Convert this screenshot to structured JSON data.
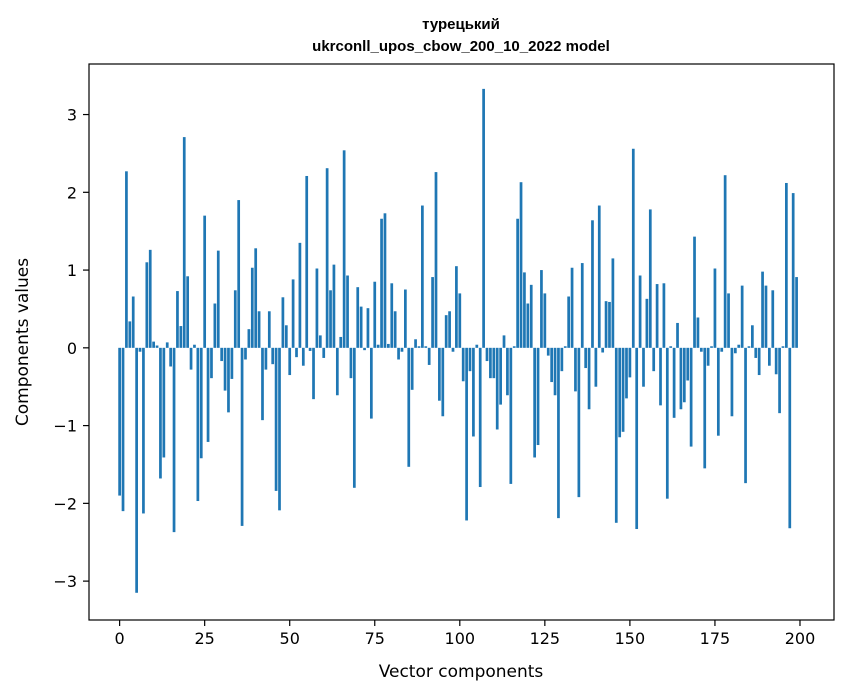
{
  "chart_data": {
    "type": "bar",
    "title": [
      "турецький",
      "ukrconll_upos_cbow_200_10_2022 model"
    ],
    "xlabel": "Vector components",
    "ylabel": "Components values",
    "xlim": [
      -9,
      210
    ],
    "ylim": [
      -3.5,
      3.65
    ],
    "xticks": [
      0,
      25,
      50,
      75,
      100,
      125,
      150,
      175,
      200
    ],
    "yticks": [
      -3,
      -2,
      -1,
      0,
      1,
      2,
      3
    ],
    "ytick_labels": [
      "−3",
      "−2",
      "−1",
      "0",
      "1",
      "2",
      "3"
    ],
    "grid": false,
    "bar_color": "#1f77b4",
    "x": [
      0,
      1,
      2,
      3,
      4,
      5,
      6,
      7,
      8,
      9,
      10,
      11,
      12,
      13,
      14,
      15,
      16,
      17,
      18,
      19,
      20,
      21,
      22,
      23,
      24,
      25,
      26,
      27,
      28,
      29,
      30,
      31,
      32,
      33,
      34,
      35,
      36,
      37,
      38,
      39,
      40,
      41,
      42,
      43,
      44,
      45,
      46,
      47,
      48,
      49,
      50,
      51,
      52,
      53,
      54,
      55,
      56,
      57,
      58,
      59,
      60,
      61,
      62,
      63,
      64,
      65,
      66,
      67,
      68,
      69,
      70,
      71,
      72,
      73,
      74,
      75,
      76,
      77,
      78,
      79,
      80,
      81,
      82,
      83,
      84,
      85,
      86,
      87,
      88,
      89,
      90,
      91,
      92,
      93,
      94,
      95,
      96,
      97,
      98,
      99,
      100,
      101,
      102,
      103,
      104,
      105,
      106,
      107,
      108,
      109,
      110,
      111,
      112,
      113,
      114,
      115,
      116,
      117,
      118,
      119,
      120,
      121,
      122,
      123,
      124,
      125,
      126,
      127,
      128,
      129,
      130,
      131,
      132,
      133,
      134,
      135,
      136,
      137,
      138,
      139,
      140,
      141,
      142,
      143,
      144,
      145,
      146,
      147,
      148,
      149,
      150,
      151,
      152,
      153,
      154,
      155,
      156,
      157,
      158,
      159,
      160,
      161,
      162,
      163,
      164,
      165,
      166,
      167,
      168,
      169,
      170,
      171,
      172,
      173,
      174,
      175,
      176,
      177,
      178,
      179,
      180,
      181,
      182,
      183,
      184,
      185,
      186,
      187,
      188,
      189,
      190,
      191,
      192,
      193,
      194,
      195,
      196,
      197,
      198,
      199
    ],
    "values": [
      -1.9,
      -2.1,
      2.27,
      0.34,
      0.66,
      -3.15,
      -0.05,
      -2.13,
      1.1,
      1.26,
      0.08,
      0.03,
      -1.68,
      -1.41,
      0.07,
      -0.24,
      -2.37,
      0.73,
      0.28,
      2.71,
      0.92,
      -0.28,
      0.04,
      -1.97,
      -1.42,
      1.7,
      -1.21,
      -0.39,
      0.57,
      1.25,
      -0.17,
      -0.55,
      -0.83,
      -0.4,
      0.74,
      1.9,
      -2.29,
      -0.15,
      0.24,
      1.03,
      1.28,
      0.47,
      -0.93,
      -0.28,
      0.47,
      -0.21,
      -1.84,
      -2.09,
      0.65,
      0.29,
      -0.35,
      0.88,
      -0.12,
      1.35,
      -0.23,
      2.21,
      -0.04,
      -0.66,
      1.02,
      0.16,
      -0.13,
      2.31,
      0.74,
      1.07,
      -0.61,
      0.14,
      2.54,
      0.93,
      -0.39,
      -1.8,
      0.78,
      0.53,
      -0.03,
      0.51,
      -0.91,
      0.85,
      0.04,
      1.66,
      1.73,
      0.05,
      0.83,
      0.47,
      -0.15,
      -0.05,
      0.75,
      -1.53,
      -0.54,
      0.11,
      0.02,
      1.83,
      0.02,
      -0.22,
      0.91,
      2.26,
      -0.68,
      -0.88,
      0.42,
      0.47,
      -0.05,
      1.05,
      0.7,
      -0.43,
      -2.22,
      -0.3,
      -1.14,
      0.04,
      -1.79,
      3.33,
      -0.17,
      -0.39,
      -0.39,
      -1.05,
      -0.73,
      0.16,
      -0.61,
      -1.75,
      0.02,
      1.66,
      2.13,
      0.97,
      0.57,
      0.81,
      -1.41,
      -1.25,
      1.0,
      0.7,
      -0.1,
      -0.44,
      -0.61,
      -2.19,
      -0.3,
      0.02,
      0.66,
      1.03,
      -0.56,
      -1.92,
      1.09,
      -0.26,
      -0.79,
      1.64,
      -0.5,
      1.83,
      -0.06,
      0.6,
      0.59,
      1.15,
      -2.25,
      -1.15,
      -1.08,
      -0.65,
      -0.38,
      2.56,
      -2.33,
      0.93,
      -0.5,
      0.63,
      1.78,
      -0.3,
      0.82,
      -0.74,
      0.83,
      -1.94,
      0.02,
      -0.9,
      0.32,
      -0.79,
      -0.7,
      -0.42,
      -1.27,
      1.43,
      0.39,
      -0.05,
      -1.55,
      -0.23,
      0.02,
      1.02,
      -1.13,
      -0.05,
      2.22,
      0.7,
      -0.88,
      -0.07,
      0.04,
      0.8,
      -1.74,
      0.02,
      0.29,
      -0.13,
      -0.35,
      0.98,
      0.8,
      -0.23,
      0.74,
      -0.34,
      -0.84,
      0.02,
      2.12,
      -2.32,
      1.99,
      0.91
    ]
  }
}
